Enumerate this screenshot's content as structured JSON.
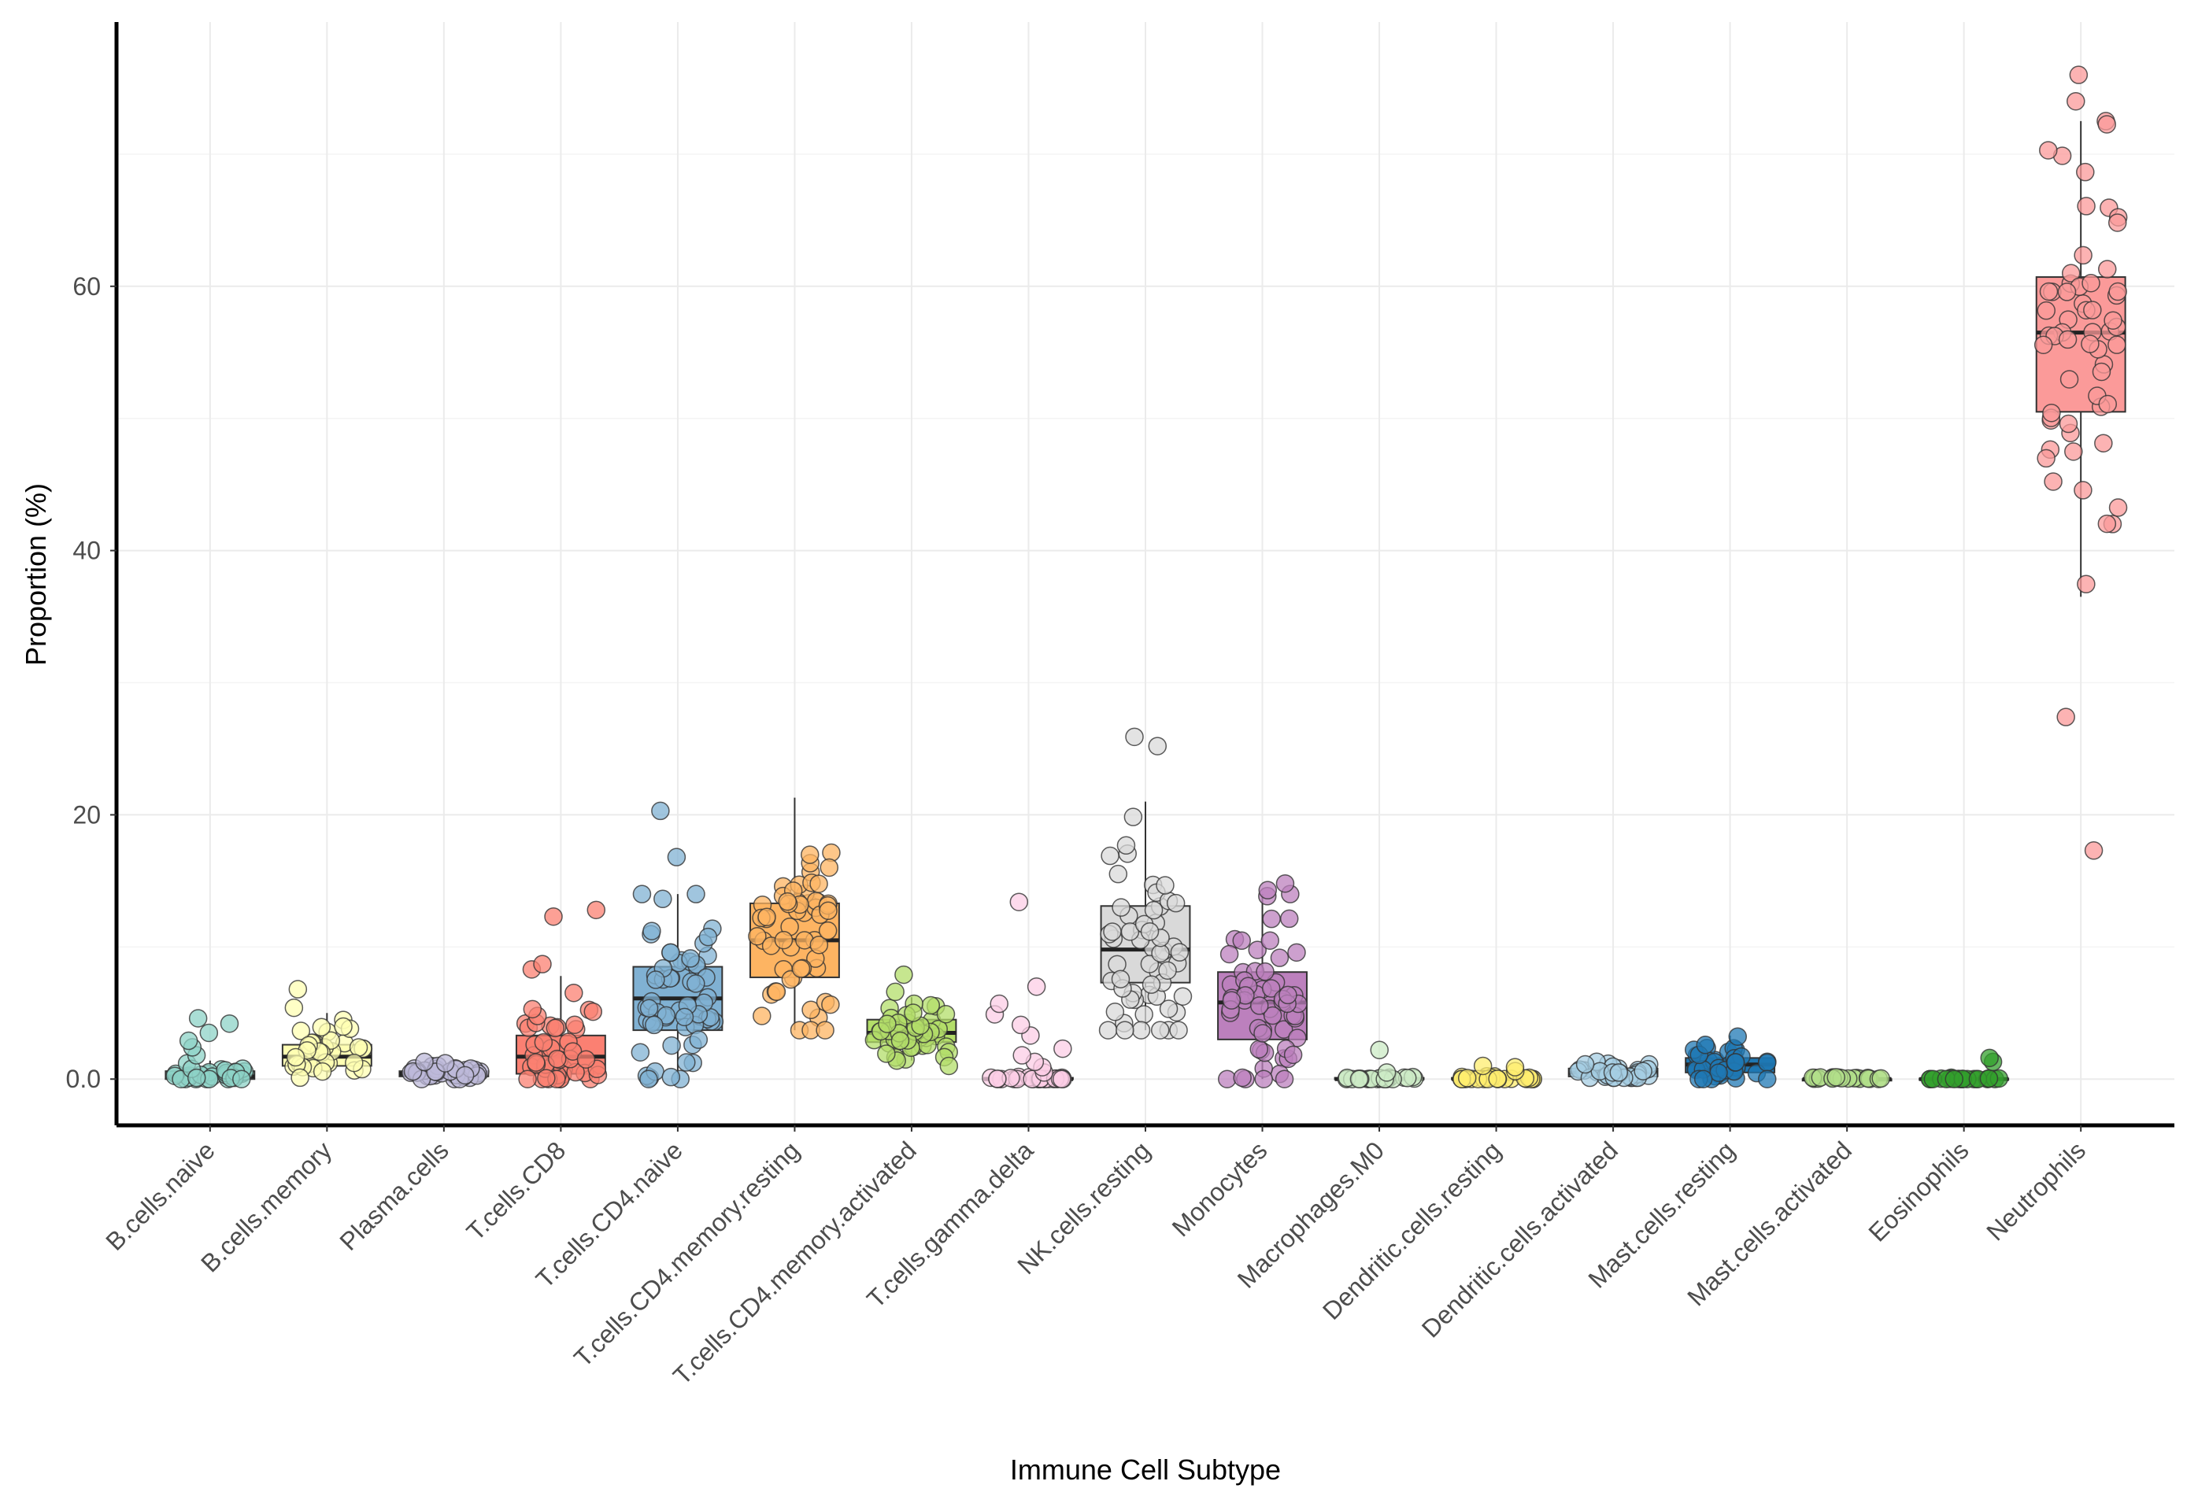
{
  "chart_data": {
    "type": "boxplot",
    "title": "",
    "xlabel": "Immune Cell Subtype",
    "ylabel": "Proportion (%)",
    "ylim": [
      -3.5,
      80
    ],
    "yticks": [
      0,
      20,
      40,
      60
    ],
    "ytick_labels": [
      "0.0",
      "20",
      "40",
      "60"
    ],
    "grid": true,
    "legend": "none",
    "categories": [
      "B.cells.naive",
      "B.cells.memory",
      "Plasma.cells",
      "T.cells.CD8",
      "T.cells.CD4.naive",
      "T.cells.CD4.memory.resting",
      "T.cells.CD4.memory.activated",
      "T.cells.gamma.delta",
      "NK.cells.resting",
      "Monocytes",
      "Macrophages.M0",
      "Dendritic.cells.resting",
      "Dendritic.cells.activated",
      "Mast.cells.resting",
      "Mast.cells.activated",
      "Eosinophils",
      "Neutrophils"
    ],
    "colors": [
      "#8dd3c7",
      "#ffffb3",
      "#bebada",
      "#fb8072",
      "#80b1d3",
      "#fdb462",
      "#b3de69",
      "#fccde5",
      "#d9d9d9",
      "#bc80bd",
      "#ccebc5",
      "#ffed6f",
      "#a6cee3",
      "#1f78b4",
      "#b2df8a",
      "#33a02c",
      "#fb9a99"
    ],
    "boxes": [
      {
        "name": "B.cells.naive",
        "min": 0,
        "q1": 0,
        "median": 0.2,
        "q3": 0.6,
        "max": 1.4
      },
      {
        "name": "B.cells.memory",
        "min": 0,
        "q1": 1.0,
        "median": 1.7,
        "q3": 2.6,
        "max": 5.0
      },
      {
        "name": "Plasma.cells",
        "min": 0,
        "q1": 0.2,
        "median": 0.4,
        "q3": 0.6,
        "max": 1.0
      },
      {
        "name": "T.cells.CD8",
        "min": 0,
        "q1": 0.4,
        "median": 1.7,
        "q3": 3.3,
        "max": 7.8
      },
      {
        "name": "T.cells.CD4.naive",
        "min": 0,
        "q1": 3.7,
        "median": 6.1,
        "q3": 8.5,
        "max": 14.0
      },
      {
        "name": "T.cells.CD4.memory.resting",
        "min": 3.7,
        "q1": 7.7,
        "median": 10.5,
        "q3": 13.3,
        "max": 21.3
      },
      {
        "name": "T.cells.CD4.memory.activated",
        "min": 1.4,
        "q1": 2.8,
        "median": 3.5,
        "q3": 4.5,
        "max": 6.2
      },
      {
        "name": "T.cells.gamma.delta",
        "min": 0,
        "q1": 0,
        "median": 0,
        "q3": 0.1,
        "max": 0.2
      },
      {
        "name": "NK.cells.resting",
        "min": 3.7,
        "q1": 7.3,
        "median": 9.8,
        "q3": 13.1,
        "max": 21.0
      },
      {
        "name": "Monocytes",
        "min": 0,
        "q1": 3.0,
        "median": 5.8,
        "q3": 8.1,
        "max": 14.0
      },
      {
        "name": "Macrophages.M0",
        "min": 0,
        "q1": 0,
        "median": 0,
        "q3": 0.1,
        "max": 0.3
      },
      {
        "name": "Dendritic.cells.resting",
        "min": 0,
        "q1": 0,
        "median": 0,
        "q3": 0.1,
        "max": 0.3
      },
      {
        "name": "Dendritic.cells.activated",
        "min": 0.1,
        "q1": 0.2,
        "median": 0.5,
        "q3": 0.8,
        "max": 1.5
      },
      {
        "name": "Mast.cells.resting",
        "min": 0,
        "q1": 0.5,
        "median": 1.1,
        "q3": 1.6,
        "max": 3.3
      },
      {
        "name": "Mast.cells.activated",
        "min": 0,
        "q1": 0,
        "median": 0,
        "q3": 0,
        "max": 0
      },
      {
        "name": "Eosinophils",
        "min": 0,
        "q1": 0,
        "median": 0,
        "q3": 0.05,
        "max": 0.1
      },
      {
        "name": "Neutrophils",
        "min": 36.5,
        "q1": 50.5,
        "median": 56.5,
        "q3": 60.7,
        "max": 72.5
      }
    ],
    "outliers": [
      {
        "category": "B.cells.naive",
        "values": [
          1.8,
          2.4,
          2.9,
          3.5,
          4.2,
          4.6
        ]
      },
      {
        "category": "B.cells.memory",
        "values": [
          5.4,
          6.8
        ]
      },
      {
        "category": "Plasma.cells",
        "values": [
          1.2,
          1.3
        ]
      },
      {
        "category": "T.cells.CD8",
        "values": [
          8.3,
          8.7,
          12.3,
          12.8
        ]
      },
      {
        "category": "T.cells.CD4.naive",
        "values": [
          16.8,
          20.3
        ]
      },
      {
        "category": "T.cells.CD4.memory.activated",
        "values": [
          6.6,
          7.9,
          1.0
        ]
      },
      {
        "category": "T.cells.gamma.delta",
        "values": [
          0.5,
          0.9,
          1.3,
          1.8,
          2.3,
          3.3,
          4.1,
          4.9,
          5.7,
          7.0,
          13.4
        ]
      },
      {
        "category": "NK.cells.resting",
        "values": [
          25.2,
          25.9
        ]
      },
      {
        "category": "Monocytes",
        "values": [
          14.3,
          14.8
        ]
      },
      {
        "category": "Macrophages.M0",
        "values": [
          0.5,
          2.2
        ]
      },
      {
        "category": "Dendritic.cells.resting",
        "values": [
          0.6,
          0.9,
          1.0
        ]
      },
      {
        "category": "Eosinophils",
        "values": [
          1.3,
          1.6
        ]
      },
      {
        "category": "Neutrophils",
        "values": [
          76.0,
          74.0,
          27.4,
          17.3
        ]
      }
    ],
    "sample_counts": [
      32,
      35,
      32,
      45,
      60,
      58,
      46,
      26,
      56,
      58,
      24,
      22,
      32,
      42,
      20,
      22,
      58
    ]
  }
}
